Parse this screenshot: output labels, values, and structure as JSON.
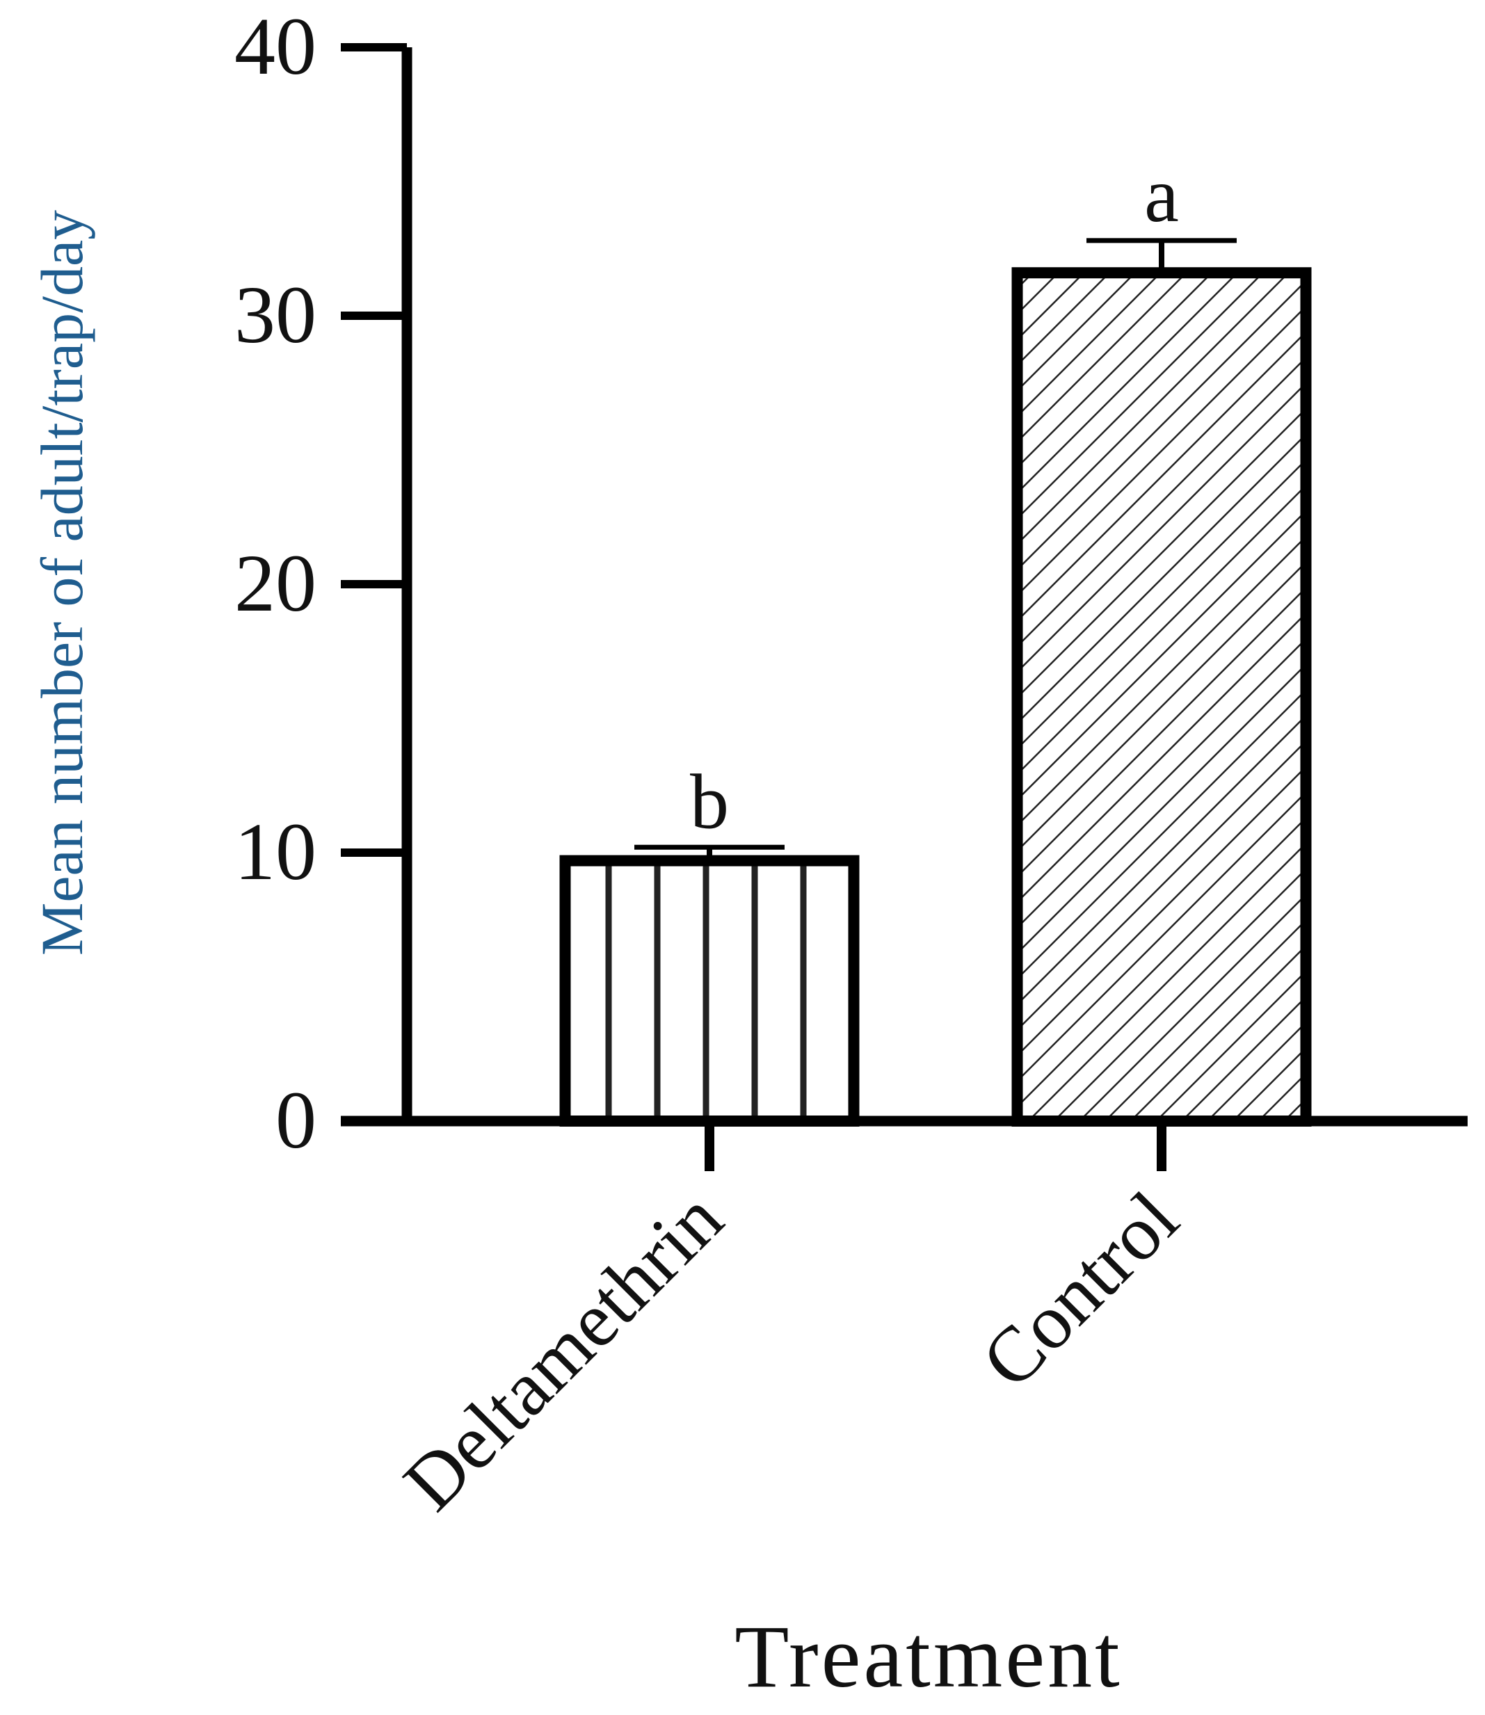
{
  "chart_data": {
    "type": "bar",
    "categories": [
      "Deltamethrin",
      "Control"
    ],
    "values": [
      9.7,
      31.6
    ],
    "errors": [
      0.5,
      1.2
    ],
    "significance_letters": [
      "b",
      "a"
    ],
    "patterns": [
      "vertical-lines",
      "diagonal-lines"
    ],
    "title": "",
    "xlabel": "Treatment",
    "ylabel": "Mean number of adult/trap/day",
    "ylim": [
      0,
      40
    ],
    "yticks": [
      0,
      10,
      20,
      30,
      40
    ],
    "grid": false,
    "colors": {
      "axis": "#000000",
      "bar_outline": "#000000",
      "hatch": "#222222",
      "ylabel_text": "#1f5d8f",
      "ylabel_accent": "#e07a1f"
    }
  }
}
